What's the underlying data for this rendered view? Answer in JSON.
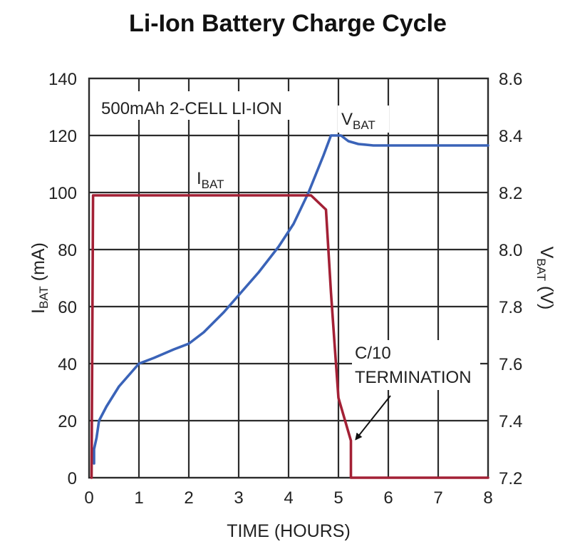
{
  "chart_data": {
    "type": "line",
    "title": "Li-Ion Battery Charge Cycle",
    "xlabel": "TIME (HOURS)",
    "ylabel_left": {
      "main": "I",
      "sub": "BAT",
      "unit": " (mA)"
    },
    "ylabel_right": {
      "main": "V",
      "sub": "BAT",
      "unit": " (V)"
    },
    "xlim": [
      0,
      8
    ],
    "ylim_left": [
      0,
      140
    ],
    "ylim_right": [
      7.2,
      8.6
    ],
    "x_ticks": [
      "0",
      "1",
      "2",
      "3",
      "4",
      "5",
      "6",
      "7",
      "8"
    ],
    "y_left_ticks": [
      "0",
      "20",
      "40",
      "60",
      "80",
      "100",
      "120",
      "140"
    ],
    "y_right_ticks": [
      "7.2",
      "7.4",
      "7.6",
      "7.8",
      "8.0",
      "8.2",
      "8.4",
      "8.6"
    ],
    "grid": true,
    "series": [
      {
        "name": "VBAT",
        "label_main": "V",
        "label_sub": "BAT",
        "axis": "right",
        "color": "#3a63b8",
        "x": [
          0.1,
          0.1,
          0.15,
          0.2,
          0.35,
          0.6,
          0.9,
          1.0,
          1.3,
          1.7,
          2.0,
          2.3,
          2.7,
          3.0,
          3.4,
          3.8,
          4.1,
          4.4,
          4.7,
          4.85,
          5.05,
          5.2,
          5.4,
          5.7,
          6.0,
          7.0,
          8.0
        ],
        "y": [
          7.25,
          7.3,
          7.34,
          7.4,
          7.45,
          7.52,
          7.58,
          7.6,
          7.62,
          7.65,
          7.67,
          7.71,
          7.78,
          7.84,
          7.92,
          8.01,
          8.09,
          8.2,
          8.33,
          8.4,
          8.4,
          8.38,
          8.37,
          8.365,
          8.365,
          8.365,
          8.365
        ]
      },
      {
        "name": "IBAT",
        "label_main": "I",
        "label_sub": "BAT",
        "axis": "left",
        "color": "#a32035",
        "x": [
          0.05,
          0.08,
          0.5,
          1.0,
          2.0,
          3.0,
          4.0,
          4.45,
          4.75,
          4.85,
          4.93,
          5.0,
          5.1,
          5.25,
          5.25,
          6.0,
          7.0,
          8.0
        ],
        "y": [
          0,
          99,
          99,
          99,
          99,
          99,
          99,
          99,
          94,
          65,
          45,
          28,
          22,
          13,
          0,
          0,
          0,
          0
        ]
      }
    ],
    "annotations": [
      {
        "id": "cell-note",
        "text": "500mAh 2-CELL LI-ION"
      },
      {
        "id": "termination",
        "lines": [
          "C/10",
          "TERMINATION"
        ],
        "points_to": {
          "x": 5.25,
          "y": 13
        }
      }
    ]
  }
}
